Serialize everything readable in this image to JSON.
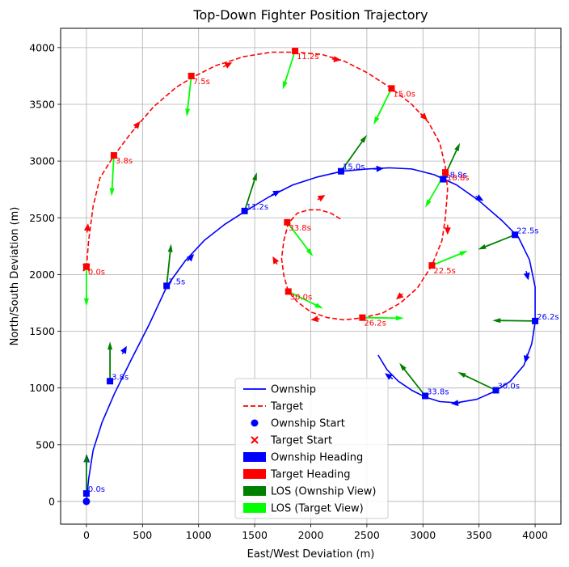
{
  "chart_data": {
    "type": "line",
    "title": "Top-Down Fighter Position Trajectory",
    "xlabel": "East/West Deviation (m)",
    "ylabel": "North/South Deviation (m)",
    "xlim": [
      -230,
      4230
    ],
    "ylim": [
      -200,
      4170
    ],
    "xticks": [
      0,
      500,
      1000,
      1500,
      2000,
      2500,
      3000,
      3500,
      4000
    ],
    "yticks": [
      0,
      500,
      1000,
      1500,
      2000,
      2500,
      3000,
      3500,
      4000
    ],
    "grid": true,
    "legend": {
      "position": "bottom-center",
      "entries": [
        "Ownship",
        "Target",
        "Ownship Start",
        "Target Start",
        "Ownship Heading",
        "Target Heading",
        "LOS (Ownship View)",
        "LOS (Target View)"
      ]
    },
    "colors": {
      "ownship": "#0000ff",
      "target": "#ff0000",
      "los_ownship": "#008000",
      "los_target": "#00ff00"
    },
    "ownship_path": {
      "x": [
        0,
        20,
        60,
        140,
        250,
        400,
        560,
        720,
        880,
        1050,
        1230,
        1420,
        1620,
        1840,
        2060,
        2280,
        2500,
        2700,
        2900,
        3100,
        3300,
        3500,
        3700,
        3850,
        3950,
        4000,
        4000,
        3970,
        3900,
        3780,
        3640,
        3480,
        3300,
        3150,
        3020,
        2900,
        2780,
        2680,
        2600
      ],
      "y": [
        0,
        200,
        450,
        700,
        950,
        1250,
        1560,
        1900,
        2120,
        2300,
        2440,
        2560,
        2680,
        2790,
        2860,
        2910,
        2930,
        2940,
        2930,
        2880,
        2790,
        2650,
        2480,
        2330,
        2130,
        1890,
        1580,
        1390,
        1200,
        1060,
        970,
        900,
        870,
        880,
        920,
        980,
        1060,
        1160,
        1290
      ]
    },
    "target_path": {
      "x": [
        0,
        20,
        60,
        120,
        240,
        400,
        600,
        800,
        950,
        1150,
        1400,
        1650,
        1870,
        2100,
        2300,
        2500,
        2720,
        2900,
        3050,
        3150,
        3200,
        3220,
        3200,
        3170,
        3080,
        2950,
        2800,
        2640,
        2470,
        2300,
        2150,
        2000,
        1880,
        1800,
        1760,
        1740,
        1760,
        1800,
        1880,
        1980,
        2080,
        2180,
        2280
      ],
      "y": [
        2060,
        2300,
        2600,
        2850,
        3040,
        3250,
        3480,
        3650,
        3740,
        3840,
        3920,
        3960,
        3960,
        3940,
        3880,
        3780,
        3640,
        3500,
        3340,
        3160,
        2950,
        2750,
        2500,
        2300,
        2080,
        1880,
        1750,
        1660,
        1620,
        1600,
        1620,
        1670,
        1760,
        1850,
        1990,
        2140,
        2300,
        2450,
        2540,
        2570,
        2570,
        2540,
        2480
      ]
    },
    "ownship_start": [
      0,
      0
    ],
    "target_start": [
      0,
      2060
    ],
    "ownship_samples": [
      {
        "label": "0.0s",
        "x": 0,
        "y": 70
      },
      {
        "label": "3.8s",
        "x": 210,
        "y": 1060
      },
      {
        "label": "7.5s",
        "x": 715,
        "y": 1900
      },
      {
        "label": "11.2s",
        "x": 1410,
        "y": 2560
      },
      {
        "label": "15.0s",
        "x": 2270,
        "y": 2910
      },
      {
        "label": "18.8s",
        "x": 3180,
        "y": 2840
      },
      {
        "label": "22.5s",
        "x": 3820,
        "y": 2350
      },
      {
        "label": "26.2s",
        "x": 4000,
        "y": 1590
      },
      {
        "label": "30.0s",
        "x": 3650,
        "y": 980
      },
      {
        "label": "33.8s",
        "x": 3020,
        "y": 930
      }
    ],
    "target_samples": [
      {
        "label": "0.0s",
        "x": 0,
        "y": 2070
      },
      {
        "label": "3.8s",
        "x": 245,
        "y": 3050
      },
      {
        "label": "7.5s",
        "x": 935,
        "y": 3750
      },
      {
        "label": "11.2s",
        "x": 1860,
        "y": 3970
      },
      {
        "label": "15.0s",
        "x": 2720,
        "y": 3640
      },
      {
        "label": "18.8s",
        "x": 3200,
        "y": 2900
      },
      {
        "label": "22.5s",
        "x": 3080,
        "y": 2080
      },
      {
        "label": "26.2s",
        "x": 2460,
        "y": 1620
      },
      {
        "label": "30.0s",
        "x": 1800,
        "y": 1850
      },
      {
        "label": "33.8s",
        "x": 1790,
        "y": 2460
      }
    ],
    "ownship_heading_arrows": [
      {
        "x": 0,
        "y": 310,
        "dx": 5,
        "dy": 100
      },
      {
        "x": 320,
        "y": 1300,
        "dx": 40,
        "dy": 70
      },
      {
        "x": 900,
        "y": 2120,
        "dx": 60,
        "dy": 60
      },
      {
        "x": 1650,
        "y": 2700,
        "dx": 80,
        "dy": 40
      },
      {
        "x": 2560,
        "y": 2930,
        "dx": 90,
        "dy": 5
      },
      {
        "x": 3470,
        "y": 2690,
        "dx": 70,
        "dy": -40
      },
      {
        "x": 3920,
        "y": 2030,
        "dx": 20,
        "dy": -80
      },
      {
        "x": 3930,
        "y": 1300,
        "dx": -20,
        "dy": -80
      },
      {
        "x": 3330,
        "y": 870,
        "dx": -80,
        "dy": -10
      },
      {
        "x": 2730,
        "y": 1080,
        "dx": -70,
        "dy": 50
      }
    ],
    "target_heading_arrows": [
      {
        "x": 5,
        "y": 2370,
        "dx": 10,
        "dy": 80
      },
      {
        "x": 430,
        "y": 3290,
        "dx": 50,
        "dy": 60
      },
      {
        "x": 1220,
        "y": 3830,
        "dx": 80,
        "dy": 40
      },
      {
        "x": 2190,
        "y": 3900,
        "dx": 80,
        "dy": -10
      },
      {
        "x": 2980,
        "y": 3420,
        "dx": 60,
        "dy": -60
      },
      {
        "x": 3220,
        "y": 2440,
        "dx": 0,
        "dy": -90
      },
      {
        "x": 2820,
        "y": 1830,
        "dx": -60,
        "dy": -50
      },
      {
        "x": 2080,
        "y": 1610,
        "dx": -80,
        "dy": -10
      },
      {
        "x": 1700,
        "y": 2090,
        "dx": -40,
        "dy": 70
      },
      {
        "x": 2060,
        "y": 2660,
        "dx": 70,
        "dy": 40
      }
    ],
    "los_ownship_arrows": [
      {
        "x": 0,
        "y": 70,
        "dx": 0,
        "dy": 350
      },
      {
        "x": 210,
        "y": 1060,
        "dx": 0,
        "dy": 350
      },
      {
        "x": 715,
        "y": 1900,
        "dx": 40,
        "dy": 370
      },
      {
        "x": 1410,
        "y": 2560,
        "dx": 110,
        "dy": 340
      },
      {
        "x": 2270,
        "y": 2910,
        "dx": 230,
        "dy": 320
      },
      {
        "x": 3180,
        "y": 2840,
        "dx": 150,
        "dy": 320
      },
      {
        "x": 3820,
        "y": 2350,
        "dx": -330,
        "dy": -130
      },
      {
        "x": 4000,
        "y": 1590,
        "dx": -380,
        "dy": 5
      },
      {
        "x": 3650,
        "y": 980,
        "dx": -340,
        "dy": 160
      },
      {
        "x": 3020,
        "y": 930,
        "dx": -230,
        "dy": 290
      }
    ],
    "los_target_arrows": [
      {
        "x": 0,
        "y": 2070,
        "dx": 0,
        "dy": -350
      },
      {
        "x": 245,
        "y": 3050,
        "dx": -20,
        "dy": -360
      },
      {
        "x": 935,
        "y": 3750,
        "dx": -40,
        "dy": -360
      },
      {
        "x": 1860,
        "y": 3970,
        "dx": -110,
        "dy": -340
      },
      {
        "x": 2720,
        "y": 3640,
        "dx": -160,
        "dy": -320
      },
      {
        "x": 3200,
        "y": 2900,
        "dx": -180,
        "dy": -310
      },
      {
        "x": 3080,
        "y": 2080,
        "dx": 320,
        "dy": 130
      },
      {
        "x": 2460,
        "y": 1620,
        "dx": 370,
        "dy": -5
      },
      {
        "x": 1800,
        "y": 1850,
        "dx": 310,
        "dy": -150
      },
      {
        "x": 1790,
        "y": 2460,
        "dx": 230,
        "dy": -300
      }
    ]
  }
}
